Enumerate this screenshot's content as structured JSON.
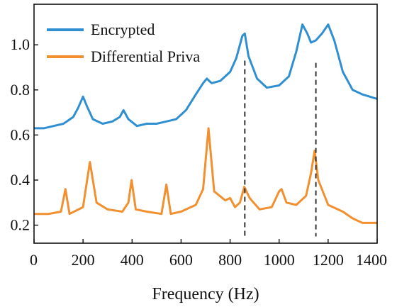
{
  "chart_data": {
    "type": "line",
    "title": "",
    "xlabel": "Frequency (Hz)",
    "ylabel": "",
    "xlim": [
      0,
      1400
    ],
    "ylim": [
      0.12,
      1.18
    ],
    "xticks": [
      0,
      200,
      400,
      600,
      800,
      1000,
      1200,
      1400
    ],
    "yticks": [
      0.2,
      0.4,
      0.6,
      0.8,
      1.0
    ],
    "ytick_labels": [
      "0.2",
      "0.4",
      "0.6",
      "0.8",
      "1.0"
    ],
    "grid": false,
    "legend": "top-left",
    "series": [
      {
        "name": "Encrypted",
        "color": "#2f8fd0",
        "x": [
          0,
          40,
          80,
          120,
          160,
          180,
          200,
          215,
          240,
          280,
          320,
          350,
          365,
          385,
          420,
          460,
          500,
          540,
          580,
          620,
          660,
          690,
          705,
          725,
          760,
          800,
          825,
          850,
          860,
          875,
          910,
          950,
          1000,
          1040,
          1070,
          1095,
          1115,
          1130,
          1150,
          1175,
          1200,
          1225,
          1260,
          1300,
          1340,
          1400
        ],
        "y": [
          0.63,
          0.63,
          0.64,
          0.65,
          0.68,
          0.72,
          0.77,
          0.73,
          0.67,
          0.65,
          0.66,
          0.68,
          0.71,
          0.67,
          0.64,
          0.65,
          0.65,
          0.66,
          0.67,
          0.71,
          0.78,
          0.83,
          0.85,
          0.83,
          0.84,
          0.88,
          0.94,
          1.04,
          1.05,
          0.95,
          0.85,
          0.81,
          0.82,
          0.86,
          0.97,
          1.09,
          1.05,
          1.01,
          1.02,
          1.05,
          1.09,
          1.02,
          0.88,
          0.8,
          0.78,
          0.76
        ]
      },
      {
        "name": "Differential Priva",
        "color": "#f2902f",
        "x": [
          0,
          60,
          110,
          128,
          145,
          200,
          228,
          255,
          300,
          360,
          385,
          398,
          415,
          460,
          520,
          540,
          558,
          600,
          660,
          690,
          712,
          735,
          780,
          800,
          820,
          840,
          858,
          880,
          920,
          970,
          1000,
          1010,
          1030,
          1070,
          1110,
          1130,
          1145,
          1160,
          1200,
          1260,
          1300,
          1340,
          1400
        ],
        "y": [
          0.25,
          0.25,
          0.26,
          0.36,
          0.25,
          0.28,
          0.48,
          0.3,
          0.27,
          0.26,
          0.3,
          0.4,
          0.27,
          0.26,
          0.25,
          0.38,
          0.25,
          0.26,
          0.29,
          0.36,
          0.63,
          0.35,
          0.31,
          0.32,
          0.28,
          0.3,
          0.37,
          0.32,
          0.27,
          0.28,
          0.35,
          0.36,
          0.3,
          0.29,
          0.33,
          0.43,
          0.53,
          0.4,
          0.29,
          0.26,
          0.23,
          0.21,
          0.21
        ]
      }
    ],
    "annotations": [
      {
        "type": "vline",
        "x": 860,
        "y_from": 0.15,
        "y_to": 0.93
      },
      {
        "type": "vline",
        "x": 1150,
        "y_from": 0.15,
        "y_to": 0.92
      }
    ]
  }
}
